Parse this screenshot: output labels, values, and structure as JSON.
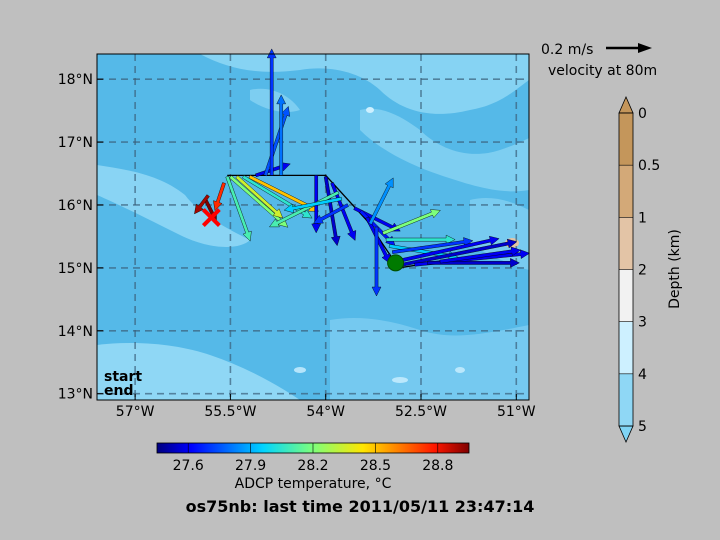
{
  "chart_data": {
    "type": "vector-map",
    "title": "os75nb: last time 2011/05/11 23:47:14",
    "map": {
      "xlim": [
        -57.6,
        -50.8
      ],
      "ylim": [
        12.9,
        18.4
      ],
      "x_ticks": [
        {
          "value": -57.0,
          "label": "57°W"
        },
        {
          "value": -55.5,
          "label": "55.5°W"
        },
        {
          "value": -54.0,
          "label": "54°W"
        },
        {
          "value": -52.5,
          "label": "52.5°W"
        },
        {
          "value": -51.0,
          "label": "51°W"
        }
      ],
      "y_ticks": [
        {
          "value": 13,
          "label": "13°N"
        },
        {
          "value": 14,
          "label": "14°N"
        },
        {
          "value": 15,
          "label": "15°N"
        },
        {
          "value": 16,
          "label": "16°N"
        },
        {
          "value": 17,
          "label": "17°N"
        },
        {
          "value": 18,
          "label": "18°N"
        }
      ],
      "grid": true,
      "grid_style": "dashed"
    },
    "ship_track": [
      [
        -55.55,
        16.47
      ],
      [
        -54.0,
        16.47
      ],
      [
        -53.35,
        15.75
      ],
      [
        -52.85,
        15.0
      ],
      [
        -51.9,
        15.15
      ]
    ],
    "start_marker": {
      "lon": -52.9,
      "lat": 15.08,
      "color": "#007a00"
    },
    "end_marker": {
      "lon": -55.8,
      "lat": 15.8,
      "color": "#ff0000"
    },
    "vectors": [
      {
        "lon": -55.9,
        "lat": 16.1,
        "u": 0.05,
        "v": -0.1,
        "temp": 28.95
      },
      {
        "lon": -55.85,
        "lat": 16.15,
        "u": -0.06,
        "v": -0.08,
        "temp": 28.9
      },
      {
        "lon": -55.6,
        "lat": 16.35,
        "u": -0.04,
        "v": -0.12,
        "temp": 28.75
      },
      {
        "lon": -55.55,
        "lat": 16.45,
        "u": 0.1,
        "v": -0.28,
        "temp": 28.1
      },
      {
        "lon": -55.5,
        "lat": 16.45,
        "u": 0.25,
        "v": -0.22,
        "temp": 28.2
      },
      {
        "lon": -55.4,
        "lat": 16.45,
        "u": 0.2,
        "v": -0.18,
        "temp": 28.35
      },
      {
        "lon": -55.3,
        "lat": 16.45,
        "u": 0.3,
        "v": -0.18,
        "temp": 28.05
      },
      {
        "lon": -55.2,
        "lat": 16.45,
        "u": 0.3,
        "v": -0.15,
        "temp": 28.5
      },
      {
        "lon": -55.1,
        "lat": 16.47,
        "u": 0.15,
        "v": 0.05,
        "temp": 27.6
      },
      {
        "lon": -54.95,
        "lat": 16.47,
        "u": 0.1,
        "v": 0.3,
        "temp": 27.75
      },
      {
        "lon": -54.85,
        "lat": 16.47,
        "u": 0.0,
        "v": 0.55,
        "temp": 27.7
      },
      {
        "lon": -54.7,
        "lat": 16.47,
        "u": 0.0,
        "v": 0.35,
        "temp": 27.8
      },
      {
        "lon": -54.15,
        "lat": 16.47,
        "u": 0.0,
        "v": -0.25,
        "temp": 27.6
      },
      {
        "lon": -54.0,
        "lat": 16.45,
        "u": 0.05,
        "v": -0.3,
        "temp": 27.55
      },
      {
        "lon": -53.9,
        "lat": 16.35,
        "u": 0.1,
        "v": -0.25,
        "temp": 27.6
      },
      {
        "lon": -53.8,
        "lat": 16.2,
        "u": -0.3,
        "v": -0.15,
        "temp": 28.1
      },
      {
        "lon": -53.75,
        "lat": 16.1,
        "u": -0.25,
        "v": -0.05,
        "temp": 27.95
      },
      {
        "lon": -53.65,
        "lat": 16.0,
        "u": -0.15,
        "v": -0.08,
        "temp": 27.7
      },
      {
        "lon": -53.55,
        "lat": 15.95,
        "u": 0.2,
        "v": -0.1,
        "temp": 27.6
      },
      {
        "lon": -53.45,
        "lat": 15.9,
        "u": 0.15,
        "v": -0.15,
        "temp": 27.65
      },
      {
        "lon": -53.35,
        "lat": 15.8,
        "u": 0.1,
        "v": -0.2,
        "temp": 27.6
      },
      {
        "lon": -53.3,
        "lat": 15.7,
        "u": 0.1,
        "v": 0.2,
        "temp": 27.85
      },
      {
        "lon": -53.2,
        "lat": 15.65,
        "u": 0.0,
        "v": -0.3,
        "temp": 27.7
      },
      {
        "lon": -53.1,
        "lat": 15.55,
        "u": 0.25,
        "v": 0.1,
        "temp": 28.2
      },
      {
        "lon": -53.05,
        "lat": 15.45,
        "u": 0.3,
        "v": 0.0,
        "temp": 28.05
      },
      {
        "lon": -53.0,
        "lat": 15.35,
        "u": 0.3,
        "v": -0.05,
        "temp": 27.95
      },
      {
        "lon": -52.95,
        "lat": 15.25,
        "u": 0.35,
        "v": 0.05,
        "temp": 27.7
      },
      {
        "lon": -52.9,
        "lat": 15.1,
        "u": 0.45,
        "v": 0.1,
        "temp": 27.6
      },
      {
        "lon": -52.8,
        "lat": 15.05,
        "u": 0.5,
        "v": 0.1,
        "temp": 27.55
      },
      {
        "lon": -52.6,
        "lat": 15.05,
        "u": 0.5,
        "v": 0.05,
        "temp": 27.6
      },
      {
        "lon": -52.4,
        "lat": 15.08,
        "u": 0.4,
        "v": 0.0,
        "temp": 27.55
      },
      {
        "lon": -52.2,
        "lat": 15.1,
        "u": 0.35,
        "v": 0.05,
        "temp": 27.6
      }
    ],
    "reference_vector": {
      "label": "0.2 m/s",
      "magnitude": 0.2,
      "sublabel": "velocity at 80m"
    },
    "depth_colorbar": {
      "label": "Depth (km)",
      "ticks": [
        "0",
        "0.5",
        "1",
        "2",
        "3",
        "4",
        "5"
      ],
      "colors": [
        "#c4965b",
        "#d3a978",
        "#e3c4a6",
        "#f2f2f2",
        "#cdf0ff",
        "#8fd7f5"
      ]
    },
    "temperature_colorbar": {
      "label": "ADCP temperature, °C",
      "ticks": [
        "27.6",
        "27.9",
        "28.2",
        "28.5",
        "28.8"
      ],
      "range": [
        27.45,
        28.95
      ]
    },
    "legend": {
      "start": "start",
      "end": "end",
      "start_color": "#007a00",
      "end_color": "#ff0000"
    }
  }
}
